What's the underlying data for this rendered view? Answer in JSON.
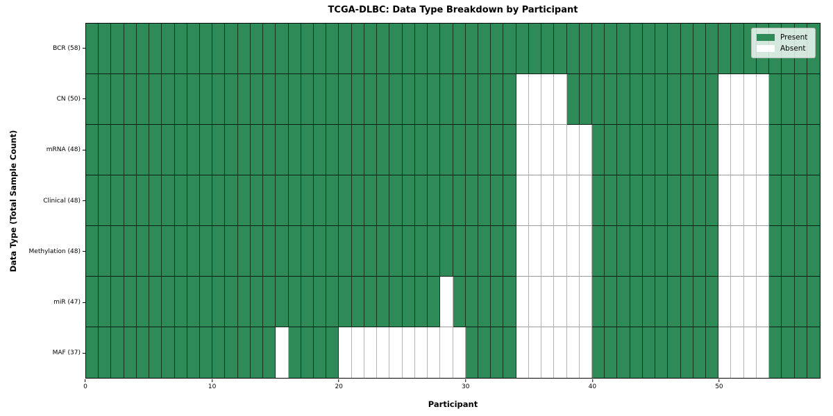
{
  "chart_data": {
    "type": "heatmap",
    "title": "TCGA-DLBC: Data Type Breakdown by Participant",
    "xlabel": "Participant",
    "ylabel": "Data Type (Total Sample Count)",
    "n_participants": 58,
    "x_range": [
      0,
      58
    ],
    "x_ticks": [
      0,
      10,
      20,
      30,
      40,
      50
    ],
    "grid": "cell-borders",
    "legend_position": "upper-right",
    "colors": {
      "present": "#2e8b57",
      "absent": "#ffffff"
    },
    "rows": [
      {
        "label": "BCR (58)",
        "data_type": "BCR",
        "total_sample_count": 58,
        "absent_participants": []
      },
      {
        "label": "CN (50)",
        "data_type": "CN",
        "total_sample_count": 50,
        "absent_participants": [
          34,
          35,
          36,
          37,
          50,
          51,
          52,
          53
        ]
      },
      {
        "label": "mRNA (48)",
        "data_type": "mRNA",
        "total_sample_count": 48,
        "absent_participants": [
          34,
          35,
          36,
          37,
          38,
          39,
          50,
          51,
          52,
          53
        ]
      },
      {
        "label": "Clinical (48)",
        "data_type": "Clinical",
        "total_sample_count": 48,
        "absent_participants": [
          34,
          35,
          36,
          37,
          38,
          39,
          50,
          51,
          52,
          53
        ]
      },
      {
        "label": "Methylation (48)",
        "data_type": "Methylation",
        "total_sample_count": 48,
        "absent_participants": [
          34,
          35,
          36,
          37,
          38,
          39,
          50,
          51,
          52,
          53
        ]
      },
      {
        "label": "miR (47)",
        "data_type": "miR",
        "total_sample_count": 47,
        "absent_participants": [
          28,
          34,
          35,
          36,
          37,
          38,
          39,
          50,
          51,
          52,
          53
        ]
      },
      {
        "label": "MAF (37)",
        "data_type": "MAF",
        "total_sample_count": 37,
        "absent_participants": [
          15,
          20,
          21,
          22,
          23,
          24,
          25,
          26,
          27,
          28,
          29,
          34,
          35,
          36,
          37,
          38,
          39,
          50,
          51,
          52,
          53
        ]
      }
    ],
    "legend": [
      {
        "label": "Present",
        "state": "present"
      },
      {
        "label": "Absent",
        "state": "absent"
      }
    ]
  }
}
